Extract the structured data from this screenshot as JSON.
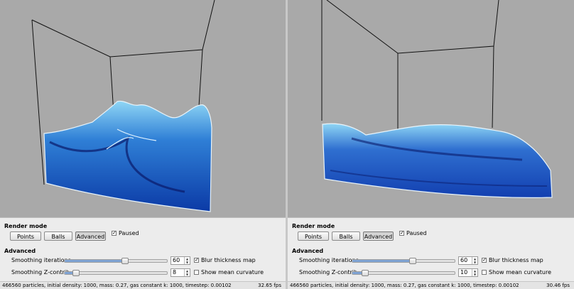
{
  "panels": [
    {
      "render_mode_title": "Render mode",
      "buttons": {
        "points": "Points",
        "balls": "Balls",
        "advanced": "Advanced"
      },
      "paused_label": "Paused",
      "advanced_title": "Advanced",
      "smoothing_iterations_label": "Smoothing iterations",
      "smoothing_iterations_value": "60",
      "smoothing_iterations_level": 0.6,
      "smoothing_zcontrib_label": "Smoothing Z-contrib",
      "smoothing_zcontrib_value": "8",
      "smoothing_zcontrib_level": 0.08,
      "blur_label": "Blur thickness map",
      "curvature_label": "Show mean curvature",
      "status": "466560 particles, initial density: 1000, mass: 0.27, gas constant k: 1000, timestep: 0.00102",
      "fps": "32.65 fps"
    },
    {
      "render_mode_title": "Render mode",
      "buttons": {
        "points": "Points",
        "balls": "Balls",
        "advanced": "Advanced"
      },
      "paused_label": "Paused",
      "advanced_title": "Advanced",
      "smoothing_iterations_label": "Smoothing iterations",
      "smoothing_iterations_value": "60",
      "smoothing_iterations_level": 0.6,
      "smoothing_zcontrib_label": "Smoothing Z-contrib",
      "smoothing_zcontrib_value": "10",
      "smoothing_zcontrib_level": 0.1,
      "blur_label": "Blur thickness map",
      "curvature_label": "Show mean curvature",
      "status": "466560 particles, initial density: 1000, mass: 0.27, gas constant k: 1000, timestep: 0.00102",
      "fps": "30.46 fps"
    }
  ],
  "colors": {
    "fluid_dark": "#0a2a8c",
    "fluid_light": "#6fc3f0",
    "background": "#a9a9a9"
  }
}
